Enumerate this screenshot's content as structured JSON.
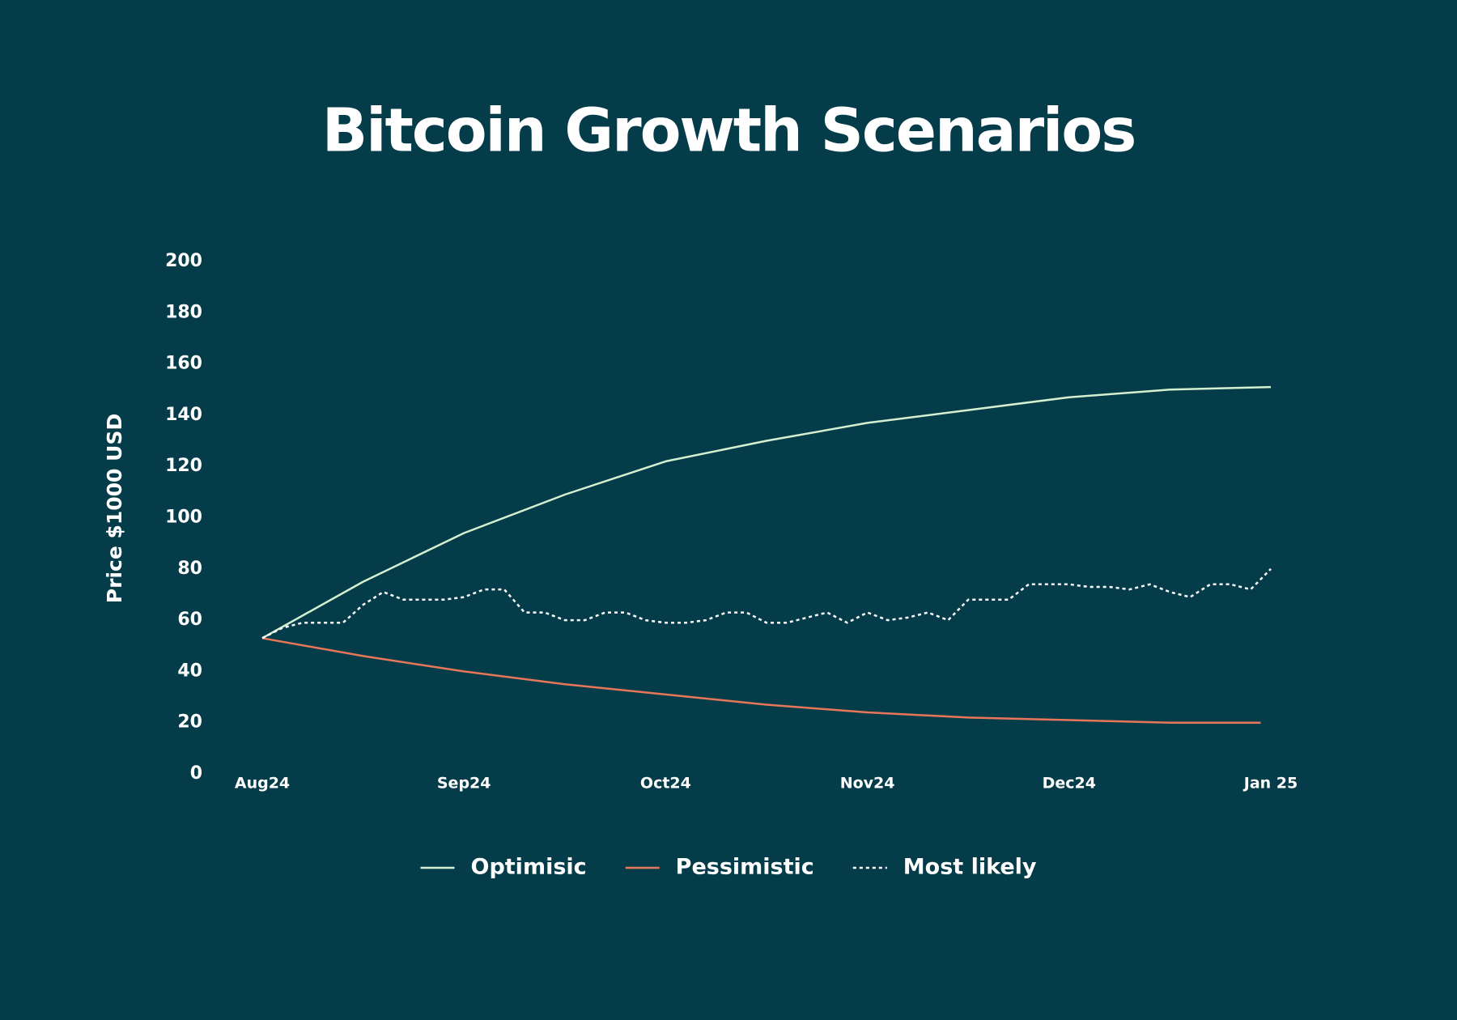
{
  "chart_data": {
    "type": "line",
    "title": "Bitcoin Growth Scenarios",
    "y_label": "Price $1000 USD",
    "ylim": [
      0,
      200
    ],
    "yticks": [
      0,
      20,
      40,
      60,
      80,
      100,
      120,
      140,
      160,
      180,
      200
    ],
    "xlim": [
      0,
      5
    ],
    "xticks": [
      {
        "value": 0,
        "label": "Aug24"
      },
      {
        "value": 1,
        "label": "Sep24"
      },
      {
        "value": 2,
        "label": "Oct24"
      },
      {
        "value": 3,
        "label": "Nov24"
      },
      {
        "value": 4,
        "label": "Dec24"
      },
      {
        "value": 5,
        "label": "Jan 25"
      }
    ],
    "grid": false,
    "legend": "bottom",
    "background": "#043c4a",
    "series": [
      {
        "name": "Optimisic",
        "color": "#d4f0d0",
        "style": "solid",
        "x": [
          0,
          0.5,
          1,
          1.5,
          2,
          2.5,
          3,
          3.5,
          4,
          4.5,
          5
        ],
        "values": [
          53,
          75,
          94,
          109,
          122,
          130,
          137,
          142,
          147,
          150,
          151
        ]
      },
      {
        "name": "Pessimistic",
        "color": "#e8775a",
        "style": "solid",
        "x": [
          0,
          0.5,
          1,
          1.5,
          2,
          2.5,
          3,
          3.5,
          4,
          4.5,
          4.95
        ],
        "values": [
          53,
          46,
          40,
          35,
          31,
          27,
          24,
          22,
          21,
          20,
          20
        ]
      },
      {
        "name": "Most likely",
        "color": "#ffffff",
        "style": "dashed",
        "x": [
          0,
          0.1,
          0.2,
          0.3,
          0.4,
          0.5,
          0.6,
          0.7,
          0.8,
          0.9,
          1,
          1.1,
          1.2,
          1.3,
          1.4,
          1.5,
          1.6,
          1.7,
          1.8,
          1.9,
          2,
          2.1,
          2.2,
          2.3,
          2.4,
          2.5,
          2.6,
          2.7,
          2.8,
          2.9,
          3,
          3.1,
          3.2,
          3.3,
          3.4,
          3.5,
          3.6,
          3.7,
          3.8,
          3.9,
          4,
          4.1,
          4.2,
          4.3,
          4.4,
          4.5,
          4.6,
          4.7,
          4.8,
          4.9,
          5
        ],
        "values": [
          53,
          57,
          59,
          59,
          59,
          66,
          71,
          68,
          68,
          68,
          69,
          72,
          72,
          63,
          63,
          60,
          60,
          63,
          63,
          60,
          59,
          59,
          60,
          63,
          63,
          59,
          59,
          61,
          63,
          59,
          63,
          60,
          61,
          63,
          60,
          68,
          68,
          68,
          74,
          74,
          74,
          73,
          73,
          72,
          74,
          71,
          69,
          74,
          74,
          72,
          80
        ]
      }
    ]
  }
}
